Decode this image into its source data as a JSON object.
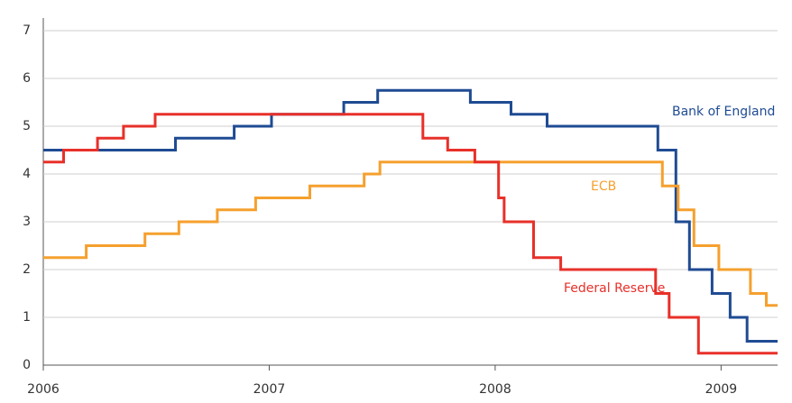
{
  "chart_data": {
    "type": "line",
    "step": true,
    "xlim": [
      2006,
      2009.25
    ],
    "xticks": [
      2006,
      2007,
      2008,
      2009
    ],
    "ylim": [
      0,
      7
    ],
    "yticks": [
      0,
      1,
      2,
      3,
      4,
      5,
      6,
      7
    ],
    "grid": true,
    "series": [
      {
        "name": "Bank of England",
        "color": "#1f4b93",
        "x": [
          2006,
          2006.585,
          2006.845,
          2007.01,
          2007.33,
          2007.48,
          2007.89,
          2008.07,
          2008.23,
          2008.72,
          2008.8,
          2008.86,
          2008.96,
          2009.04,
          2009.115
        ],
        "values": [
          4.5,
          4.75,
          5.0,
          5.25,
          5.5,
          5.75,
          5.5,
          5.25,
          5.0,
          4.5,
          3.0,
          2.0,
          1.5,
          1.0,
          0.5
        ]
      },
      {
        "name": "ECB",
        "color": "#f5a02e",
        "x": [
          2006,
          2006.19,
          2006.45,
          2006.6,
          2006.77,
          2006.94,
          2007.18,
          2007.42,
          2007.49,
          2008.74,
          2008.81,
          2008.88,
          2008.99,
          2009.13,
          2009.2
        ],
        "values": [
          2.25,
          2.5,
          2.75,
          3.0,
          3.25,
          3.5,
          3.75,
          4.0,
          4.25,
          3.75,
          3.25,
          2.5,
          2.0,
          1.5,
          1.25
        ]
      },
      {
        "name": "Federal Reserve",
        "color": "#e8302a",
        "x": [
          2006,
          2006.09,
          2006.24,
          2006.355,
          2006.495,
          2007.68,
          2007.79,
          2007.91,
          2008.015,
          2008.04,
          2008.17,
          2008.29,
          2008.71,
          2008.77,
          2008.9
        ],
        "values": [
          4.25,
          4.5,
          4.75,
          5.0,
          5.25,
          4.75,
          4.5,
          4.25,
          3.5,
          3.0,
          2.25,
          2.0,
          1.5,
          1.0,
          0.25
        ]
      }
    ]
  }
}
